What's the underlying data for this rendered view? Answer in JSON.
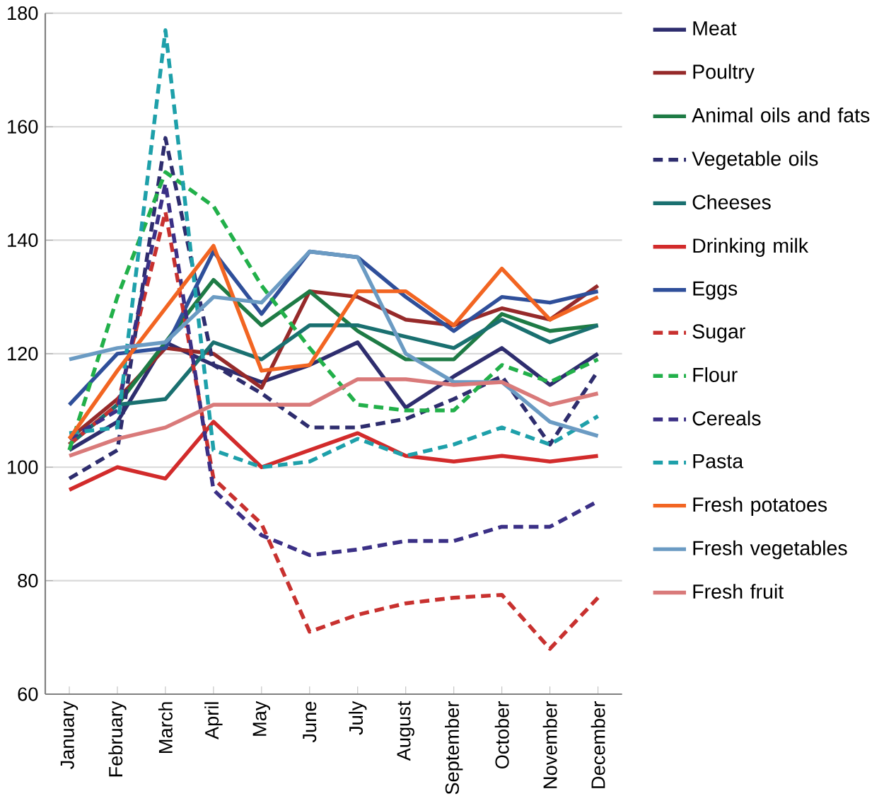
{
  "chart_data": {
    "type": "line",
    "categories": [
      "January",
      "February",
      "March",
      "April",
      "May",
      "June",
      "July",
      "August",
      "September",
      "October",
      "November",
      "December"
    ],
    "ylim": [
      60,
      180
    ],
    "yticks": [
      60,
      80,
      100,
      120,
      140,
      160,
      180
    ],
    "grid": "y",
    "legend": "right",
    "marker": "none",
    "series": [
      {
        "name": "Meat",
        "color": "#2e2d6e",
        "line_style": "solid",
        "values": [
          103,
          108,
          122,
          118,
          115,
          118,
          122,
          110.5,
          116,
          121,
          114.5,
          120
        ]
      },
      {
        "name": "Poultry",
        "color": "#962a2a",
        "line_style": "solid",
        "values": [
          105,
          112,
          121,
          120,
          114,
          131,
          130,
          126,
          125,
          128,
          126,
          132
        ]
      },
      {
        "name": "Animal oils and fats",
        "color": "#1e7b45",
        "line_style": "solid",
        "values": [
          104,
          111,
          122,
          133,
          125,
          131,
          124,
          119,
          119,
          127,
          124,
          125
        ]
      },
      {
        "name": "Vegetable oils",
        "color": "#2e2d6e",
        "line_style": "dashed",
        "values": [
          98,
          103,
          158,
          118,
          113,
          107,
          107,
          108.5,
          112,
          116,
          104,
          117
        ]
      },
      {
        "name": "Cheeses",
        "color": "#1a7070",
        "line_style": "solid",
        "values": [
          104,
          111,
          112,
          122,
          119,
          125,
          125,
          123,
          121,
          126,
          122,
          125
        ]
      },
      {
        "name": "Drinking milk",
        "color": "#d22b2b",
        "line_style": "solid",
        "values": [
          96,
          100,
          98,
          108,
          100,
          103,
          106,
          102,
          101,
          102,
          101,
          102
        ]
      },
      {
        "name": "Eggs",
        "color": "#2f4f9a",
        "line_style": "solid",
        "values": [
          111,
          120,
          121,
          138,
          127,
          138,
          137,
          130,
          124,
          130,
          129,
          131
        ]
      },
      {
        "name": "Sugar",
        "color": "#c8312f",
        "line_style": "dashed",
        "values": [
          104,
          111,
          145,
          98,
          90,
          71,
          74,
          76,
          77,
          77.5,
          68,
          77
        ]
      },
      {
        "name": "Flour",
        "color": "#22b04a",
        "line_style": "dashed",
        "values": [
          103,
          130,
          152,
          146,
          132,
          121,
          111,
          110,
          110,
          118,
          115,
          119
        ]
      },
      {
        "name": "Cereals",
        "color": "#3b3086",
        "line_style": "dashed",
        "values": [
          105,
          110,
          150,
          96,
          88,
          84.5,
          85.5,
          87,
          87,
          89.5,
          89.5,
          94
        ]
      },
      {
        "name": "Pasta",
        "color": "#1ea0aa",
        "line_style": "dashed",
        "values": [
          106,
          107,
          177,
          103,
          100,
          101,
          105,
          102,
          104,
          107,
          104,
          109
        ]
      },
      {
        "name": "Fresh potatoes",
        "color": "#f26522",
        "line_style": "solid",
        "values": [
          105,
          117,
          128,
          139,
          117,
          118,
          131,
          131,
          125,
          135,
          126,
          130
        ]
      },
      {
        "name": "Fresh vegetables",
        "color": "#6b9bc3",
        "line_style": "solid",
        "values": [
          119,
          121,
          122,
          130,
          129,
          138,
          137,
          120,
          115,
          115,
          108,
          105.5
        ]
      },
      {
        "name": "Fresh fruit",
        "color": "#d97a7a",
        "line_style": "solid",
        "values": [
          102,
          105,
          107,
          111,
          111,
          111,
          115.5,
          115.5,
          114.5,
          115,
          111,
          113
        ]
      }
    ]
  }
}
